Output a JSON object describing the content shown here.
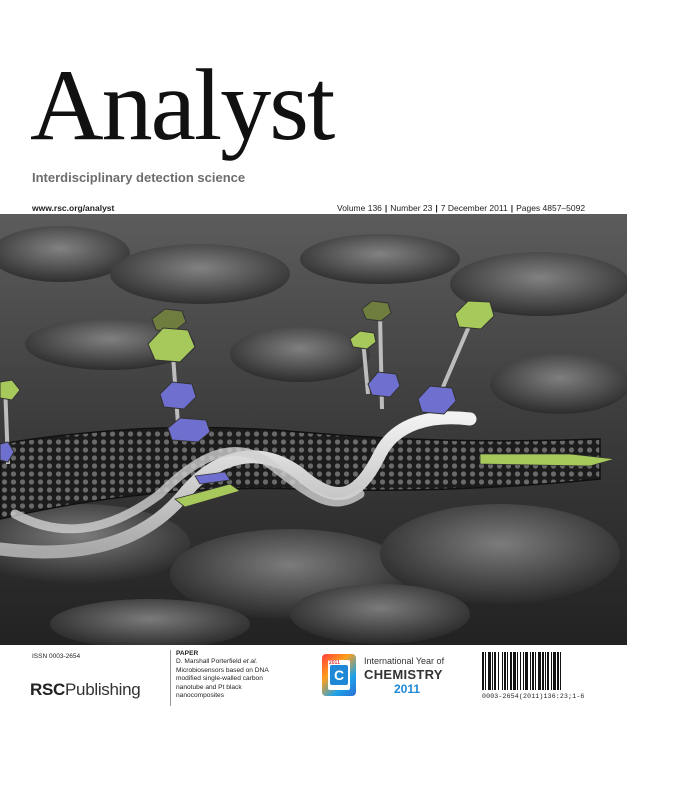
{
  "journal": {
    "title": "Analyst",
    "subtitle": "Interdisciplinary detection science",
    "url": "www.rsc.org/analyst"
  },
  "issue": {
    "volume": "Volume 136",
    "number": "Number 23",
    "date": "7 December 2011",
    "pages": "Pages 4857–5092",
    "separator": "|"
  },
  "footer": {
    "issn": "ISSN 0003-2654",
    "publisher": {
      "prefix": "RSC",
      "suffix": "Publishing"
    },
    "paper": {
      "label": "PAPER",
      "authors": "D. Marshall Porterfield ",
      "etal": "et al.",
      "title_lines": [
        "Microbiosensors based on DNA",
        "modified single-walled carbon",
        "nanotube and Pt black",
        "nanocomposites"
      ]
    },
    "iyc": {
      "line1": "International Year of",
      "line2": "CHEMISTRY",
      "line3": "2011",
      "badge_year": "2011",
      "badge_letter": "C"
    },
    "barcode_text": "0003-2654(2011)136:23;1-6"
  },
  "colors": {
    "subtitle": "#6d6d6d",
    "hexagon_green": "#a7c85a",
    "hexagon_olive": "#6f7d3e",
    "hexagon_blue": "#6f6fcf",
    "iyc_blue": "#1e88d6"
  }
}
